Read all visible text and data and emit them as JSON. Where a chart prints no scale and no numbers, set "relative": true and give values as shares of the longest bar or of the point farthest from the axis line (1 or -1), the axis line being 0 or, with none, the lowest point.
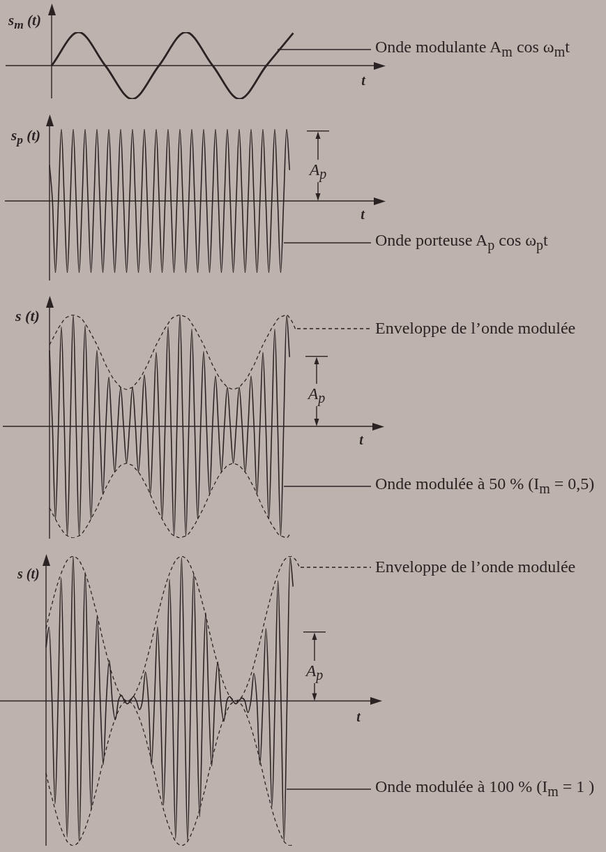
{
  "chart_data": [
    {
      "type": "line",
      "relative": true,
      "xlabel": "t",
      "ylabel": "s$_{m}$ (t)",
      "marker": "none",
      "line_style": "solid",
      "categories": [
        null,
        null,
        null,
        null,
        null,
        null,
        null,
        null,
        null,
        null
      ],
      "series": [
        {
          "name": "Onde modulante A$_{m}$ cos ω$_{m}$t",
          "color": "#2b2323",
          "values": [
            0,
            1,
            0,
            -1,
            0,
            1,
            0,
            -1,
            0,
            0.97
          ]
        }
      ]
    },
    {
      "type": "line",
      "relative": true,
      "xlabel": "t",
      "ylabel": "s$_{p}$ (t)",
      "marker": "none",
      "line_style": "solid",
      "categories": [
        null,
        null,
        null,
        null,
        null,
        null,
        null,
        null,
        null,
        null,
        null,
        null,
        null,
        null,
        null,
        null,
        null,
        null,
        null,
        null,
        null,
        null,
        null,
        null,
        null,
        null,
        null,
        null,
        null,
        null,
        null,
        null,
        null,
        null,
        null,
        null,
        null,
        null,
        null,
        null,
        null,
        null,
        null,
        null,
        null,
        null,
        null,
        null,
        null,
        null,
        null,
        null,
        null,
        null,
        null,
        null,
        null,
        null,
        null,
        null,
        null,
        null,
        null,
        null,
        null,
        null,
        null,
        null,
        null,
        null,
        null,
        null,
        null,
        null,
        null,
        null,
        null,
        null,
        null,
        null,
        null,
        null
      ],
      "series": [
        {
          "name": "Onde porteuse A$_{p}$ cos ω$_{p}$t",
          "color": "#2b2323",
          "values": [
            0.5,
            0,
            -1,
            0,
            1,
            0,
            -1,
            0,
            1,
            0,
            -1,
            0,
            1,
            0,
            -1,
            0,
            1,
            0,
            -1,
            0,
            1,
            0,
            -1,
            0,
            1,
            0,
            -1,
            0,
            1,
            0,
            -1,
            0,
            1,
            0,
            -1,
            0,
            1,
            0,
            -1,
            0,
            1,
            0,
            -1,
            0,
            1,
            0,
            -1,
            0,
            1,
            0,
            -1,
            0,
            1,
            0,
            -1,
            0,
            1,
            0,
            -1,
            0,
            1,
            0,
            -1,
            0,
            1,
            0,
            -1,
            0,
            1,
            0,
            -1,
            0,
            1,
            0,
            -1,
            0,
            1,
            0,
            -1,
            0,
            1,
            0.43
          ]
        }
      ],
      "annotations": [
        "A$_{p}$"
      ]
    },
    {
      "type": "line",
      "relative": true,
      "xlabel": "t",
      "ylabel": "s (t)",
      "marker": "none",
      "line_style": "solid",
      "categories": [
        null,
        null,
        null,
        null,
        null,
        null,
        null,
        null,
        null,
        null,
        null,
        null,
        null,
        null,
        null,
        null,
        null,
        null,
        null,
        null,
        null,
        null,
        null,
        null,
        null,
        null,
        null,
        null,
        null,
        null,
        null,
        null,
        null,
        null,
        null,
        null,
        null,
        null,
        null,
        null,
        null,
        null,
        null,
        null,
        null,
        null,
        null,
        null,
        null,
        null,
        null,
        null,
        null,
        null,
        null,
        null,
        null,
        null,
        null,
        null,
        null,
        null,
        null,
        null,
        null,
        null,
        null,
        null,
        null,
        null,
        null,
        null,
        null,
        null,
        null,
        null,
        null,
        null,
        null,
        null,
        null,
        null,
        null,
        null
      ],
      "series": [
        {
          "name": "Onde modulée à 50 % (I$_{m}$ = 0,5)",
          "color": "#2b2323",
          "values": [
            0.68,
            0,
            -0.83,
            0,
            0.89,
            0,
            -0.98,
            0,
            1,
            0,
            -0.98,
            0,
            0.9,
            0,
            -0.83,
            0,
            0.68,
            0,
            -0.61,
            0,
            0.44,
            0,
            -0.41,
            0,
            0.35,
            0,
            -0.33,
            0,
            0.35,
            0,
            -0.41,
            0,
            0.46,
            0,
            -0.61,
            0,
            0.66,
            0,
            -0.83,
            0,
            0.89,
            0,
            -0.98,
            0,
            1,
            0,
            -0.98,
            0,
            0.87,
            0,
            -0.83,
            0,
            0.67,
            0,
            -0.61,
            0,
            0.45,
            0,
            -0.41,
            0,
            0.35,
            0,
            -0.33,
            0,
            0.35,
            0,
            -0.41,
            0,
            0.45,
            0,
            -0.61,
            0,
            0.66,
            0,
            -0.83,
            0,
            0.87,
            0,
            -0.98,
            0,
            0.99,
            0.62,
            null,
            null
          ]
        },
        {
          "name": "Enveloppe de l’onde modulée",
          "color": "#2b2323",
          "line_style": "dashed",
          "values": [
            0.73,
            0.78,
            0.83,
            0.88,
            0.92,
            0.96,
            0.98,
            0.99,
            1,
            0.99,
            0.98,
            0.96,
            0.92,
            0.88,
            0.83,
            0.78,
            0.73,
            0.67,
            0.61,
            0.55,
            0.5,
            0.45,
            0.41,
            0.38,
            0.35,
            0.34,
            0.33,
            0.34,
            0.35,
            0.38,
            0.41,
            0.45,
            0.5,
            0.55,
            0.61,
            0.67,
            0.73,
            0.78,
            0.83,
            0.88,
            0.92,
            0.96,
            0.98,
            0.99,
            1,
            0.99,
            0.98,
            0.96,
            0.92,
            0.88,
            0.83,
            0.78,
            0.73,
            0.67,
            0.61,
            0.55,
            0.5,
            0.45,
            0.41,
            0.38,
            0.35,
            0.34,
            0.33,
            0.34,
            0.35,
            0.38,
            0.41,
            0.45,
            0.5,
            0.55,
            0.61,
            0.67,
            0.73,
            0.78,
            0.83,
            0.88,
            0.92,
            0.96,
            0.98,
            0.99,
            1,
            0.97,
            0.93,
            0.87
          ]
        },
        {
          "color": "#2b2323",
          "line_style": "dashed",
          "values": [
            -0.73,
            -0.78,
            -0.83,
            -0.88,
            -0.92,
            -0.96,
            -0.98,
            -0.99,
            -1,
            -0.99,
            -0.98,
            -0.96,
            -0.92,
            -0.88,
            -0.83,
            -0.78,
            -0.73,
            -0.67,
            -0.61,
            -0.55,
            -0.5,
            -0.45,
            -0.41,
            -0.38,
            -0.35,
            -0.34,
            -0.33,
            -0.34,
            -0.35,
            -0.38,
            -0.41,
            -0.45,
            -0.5,
            -0.55,
            -0.61,
            -0.67,
            -0.73,
            -0.78,
            -0.83,
            -0.88,
            -0.92,
            -0.96,
            -0.98,
            -0.99,
            -1,
            -0.99,
            -0.98,
            -0.96,
            -0.92,
            -0.88,
            -0.83,
            -0.78,
            -0.73,
            -0.67,
            -0.61,
            -0.55,
            -0.5,
            -0.45,
            -0.41,
            -0.38,
            -0.35,
            -0.34,
            -0.33,
            -0.34,
            -0.35,
            -0.38,
            -0.41,
            -0.45,
            -0.5,
            -0.55,
            -0.61,
            -0.67,
            -0.73,
            -0.78,
            -0.83,
            -0.88,
            -0.92,
            -0.96,
            -0.98,
            -0.99,
            -1,
            -0.97,
            null,
            null
          ]
        }
      ],
      "annotations": [
        "A$_{p}$"
      ]
    },
    {
      "type": "line",
      "relative": true,
      "xlabel": "t",
      "ylabel": "s (t)",
      "marker": "none",
      "line_style": "solid",
      "categories": [
        null,
        null,
        null,
        null,
        null,
        null,
        null,
        null,
        null,
        null,
        null,
        null,
        null,
        null,
        null,
        null,
        null,
        null,
        null,
        null,
        null,
        null,
        null,
        null,
        null,
        null,
        null,
        null,
        null,
        null,
        null,
        null,
        null,
        null,
        null,
        null,
        null,
        null,
        null,
        null,
        null,
        null,
        null,
        null,
        null,
        null,
        null,
        null,
        null,
        null,
        null,
        null,
        null,
        null,
        null,
        null,
        null,
        null,
        null,
        null,
        null,
        null,
        null,
        null,
        null,
        null,
        null,
        null,
        null,
        null,
        null,
        null,
        null,
        null,
        null,
        null,
        null,
        null,
        null,
        null,
        null,
        null,
        null,
        null,
        null
      ],
      "series": [
        {
          "name": "Onde modulée à 100 % (I$_{m}$ = 1 )",
          "color": "#2b2323",
          "values": [
            0.37,
            0.51,
            0,
            -0.71,
            0,
            0.85,
            0,
            -0.94,
            0,
            1,
            0,
            -0.97,
            0,
            0.89,
            0,
            -0.75,
            0,
            0.59,
            0,
            -0.44,
            0,
            0.28,
            0,
            -0.13,
            0,
            0.04,
            0,
            -0.02,
            0,
            0.03,
            0,
            -0.06,
            0,
            0.2,
            0,
            -0.44,
            0,
            0.51,
            0,
            -0.72,
            0,
            0.84,
            0,
            -0.95,
            0,
            0.99,
            0,
            -0.97,
            0,
            0.88,
            0,
            -0.8,
            0,
            0.61,
            0,
            -0.45,
            0,
            0.27,
            0,
            -0.14,
            0,
            0.03,
            0,
            -0.02,
            0,
            0.02,
            0,
            -0.08,
            0,
            0.19,
            0,
            -0.44,
            0,
            0.5,
            0,
            -0.73,
            0,
            0.83,
            0,
            -0.97,
            0,
            0.99,
            0.79,
            null,
            null
          ]
        },
        {
          "name": "Enveloppe de l’onde modulée",
          "color": "#2b2323",
          "line_style": "dashed",
          "values": [
            0.5,
            0.59,
            0.67,
            0.75,
            0.82,
            0.88,
            0.93,
            0.97,
            0.99,
            1,
            0.99,
            0.97,
            0.93,
            0.88,
            0.82,
            0.75,
            0.67,
            0.59,
            0.5,
            0.41,
            0.33,
            0.25,
            0.18,
            0.12,
            0.07,
            0.03,
            0.01,
            0,
            0.01,
            0.03,
            0.07,
            0.12,
            0.18,
            0.25,
            0.33,
            0.41,
            0.5,
            0.59,
            0.67,
            0.75,
            0.82,
            0.88,
            0.93,
            0.97,
            0.99,
            1,
            0.99,
            0.97,
            0.93,
            0.88,
            0.82,
            0.75,
            0.67,
            0.59,
            0.5,
            0.41,
            0.33,
            0.25,
            0.18,
            0.12,
            0.07,
            0.03,
            0.01,
            0,
            0.01,
            0.03,
            0.07,
            0.12,
            0.18,
            0.25,
            0.33,
            0.41,
            0.5,
            0.59,
            0.67,
            0.75,
            0.82,
            0.88,
            0.93,
            0.97,
            0.99,
            1,
            0.99,
            0.97,
            0.93
          ]
        },
        {
          "color": "#2b2323",
          "line_style": "dashed",
          "values": [
            -0.5,
            -0.59,
            -0.67,
            -0.75,
            -0.82,
            -0.88,
            -0.93,
            -0.97,
            -0.99,
            -1,
            -0.99,
            -0.97,
            -0.93,
            -0.88,
            -0.82,
            -0.75,
            -0.67,
            -0.59,
            -0.5,
            -0.41,
            -0.33,
            -0.25,
            -0.18,
            -0.12,
            -0.07,
            -0.03,
            -0.01,
            0,
            -0.01,
            -0.03,
            -0.07,
            -0.12,
            -0.18,
            -0.25,
            -0.33,
            -0.41,
            -0.5,
            -0.59,
            -0.67,
            -0.75,
            -0.82,
            -0.88,
            -0.93,
            -0.97,
            -0.99,
            -1,
            -0.99,
            -0.97,
            -0.93,
            -0.88,
            -0.82,
            -0.75,
            -0.67,
            -0.59,
            -0.5,
            -0.41,
            -0.33,
            -0.25,
            -0.18,
            -0.12,
            -0.07,
            -0.03,
            -0.01,
            0,
            -0.01,
            -0.03,
            -0.07,
            -0.12,
            -0.18,
            -0.25,
            -0.33,
            -0.41,
            -0.5,
            -0.59,
            -0.67,
            -0.75,
            -0.82,
            -0.88,
            -0.93,
            -0.97,
            -0.99,
            -1,
            -0.99,
            null,
            null
          ]
        }
      ],
      "annotations": [
        "A$_{p}$"
      ]
    }
  ]
}
